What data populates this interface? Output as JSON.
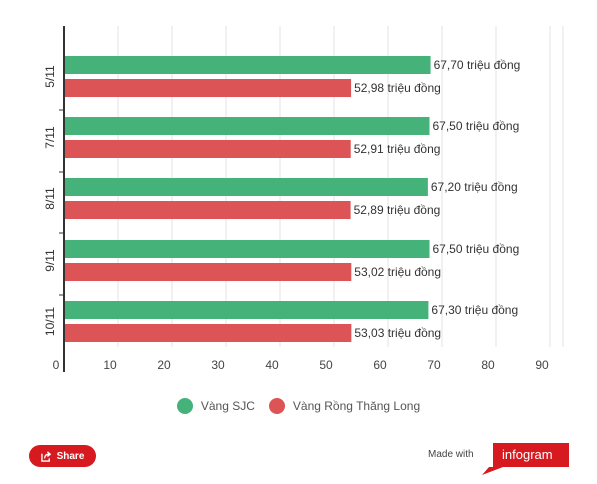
{
  "chart_data": {
    "type": "bar",
    "orientation": "horizontal",
    "categories": [
      "5/11",
      "7/11",
      "8/11",
      "9/11",
      "10/11"
    ],
    "series": [
      {
        "name": "Vàng SJC",
        "color": "#45b27a",
        "values": [
          67.7,
          67.5,
          67.2,
          67.5,
          67.3
        ],
        "labels": [
          "67,70 triệu đồng",
          "67,50 triệu đồng",
          "67,20 triệu đồng",
          "67,50 triệu đồng",
          "67,30 triệu đồng"
        ]
      },
      {
        "name": "Vàng Rồng Thăng Long",
        "color": "#dc5456",
        "values": [
          52.98,
          52.91,
          52.89,
          53.02,
          53.03
        ],
        "labels": [
          "52,98 triệu đồng",
          "52,91 triệu đồng",
          "52,89 triệu đồng",
          "53,02 triệu đồng",
          "53,03 triệu đồng"
        ]
      }
    ],
    "xlim": [
      0,
      90
    ],
    "x_ticks": [
      "0",
      "10",
      "20",
      "30",
      "40",
      "50",
      "60",
      "70",
      "80",
      "90"
    ],
    "grid": true,
    "legend_position": "bottom"
  },
  "legend": {
    "items": [
      "Vàng SJC",
      "Vàng Rồng Thăng Long"
    ]
  },
  "footer": {
    "share_label": "Share",
    "made_with": "Made with",
    "brand": "infogram",
    "share_color": "#d71a20",
    "brand_color": "#d71a20"
  }
}
